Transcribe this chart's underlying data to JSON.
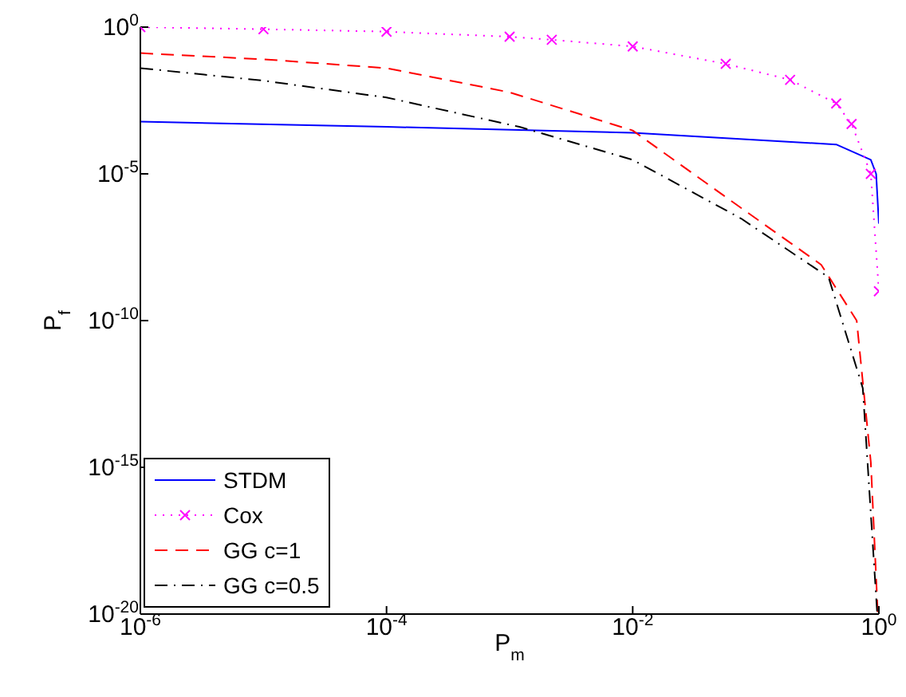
{
  "chart_data": {
    "type": "line",
    "xlabel": "P$_{m}$",
    "ylabel": "P$_{f}$",
    "log": "xy",
    "grid": false,
    "legend": "bottom left",
    "xlim": [
      1e-06,
      1
    ],
    "xticks": [
      {
        "value": 1e-06,
        "label": "10$^{-6}$"
      },
      {
        "value": 0.0001,
        "label": "10$^{-4}$"
      },
      {
        "value": 0.01,
        "label": "10$^{-2}$"
      },
      {
        "value": 1,
        "label": "10$^{0}$"
      }
    ],
    "ylim": [
      1e-20,
      1
    ],
    "yticks": [
      {
        "value": 1e-20,
        "label": "10$^{-20}$"
      },
      {
        "value": 1e-15,
        "label": "10$^{-15}$"
      },
      {
        "value": 1e-10,
        "label": "10$^{-10}$"
      },
      {
        "value": 1e-05,
        "label": "10$^{-5}$"
      },
      {
        "value": 1,
        "label": "10$^{0}$"
      }
    ],
    "series": [
      {
        "name": "STDM",
        "color": "#0000ff",
        "line_style": "solid",
        "marker": "none",
        "x": [
          1e-06,
          0.0001,
          0.01,
          0.45,
          0.86,
          0.95,
          1
        ],
        "values": [
          0.0006,
          0.0004,
          0.00025,
          0.0001,
          3e-05,
          1e-05,
          2e-07
        ]
      },
      {
        "name": "Cox",
        "color": "#ff00ff",
        "line_style": "dotted",
        "marker": "cross",
        "x": [
          1e-06,
          1e-05,
          0.0001,
          0.001,
          0.0022,
          0.01,
          0.057,
          0.19,
          0.45,
          0.6,
          0.86,
          1
        ],
        "values": [
          1,
          0.85,
          0.7,
          0.47,
          0.37,
          0.22,
          0.056,
          0.016,
          0.0025,
          0.0005,
          1e-05,
          1e-09
        ]
      },
      {
        "name": "GG c=1",
        "color": "#ff0000",
        "line_style": "dashed",
        "marker": "none",
        "x": [
          1e-06,
          1e-05,
          0.0001,
          0.001,
          0.01,
          0.067,
          0.34,
          0.66,
          0.86,
          0.98
        ],
        "values": [
          0.13,
          0.08,
          0.04,
          0.006,
          0.0003,
          1e-06,
          8e-09,
          1e-10,
          1.5e-15,
          1e-20
        ]
      },
      {
        "name": "GG c=0.5",
        "color": "#000000",
        "line_style": "dashdot",
        "marker": "none",
        "x": [
          1e-06,
          1e-05,
          0.0001,
          0.0012,
          0.01,
          0.076,
          0.39,
          0.74,
          0.97
        ],
        "values": [
          0.04,
          0.015,
          0.004,
          0.0004,
          3e-05,
          3e-07,
          3e-09,
          5e-13,
          1e-20
        ]
      }
    ]
  }
}
